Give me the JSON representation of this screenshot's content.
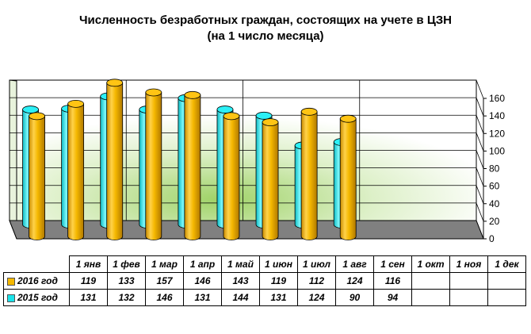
{
  "title": "Численность безработных граждан, состоящих на учете в ЦЗН",
  "subtitle": "(на 1 число месяца)",
  "colors": {
    "s2016": "#f5b800",
    "s2015": "#19e3ea",
    "floor": "#808080"
  },
  "chart_data": {
    "type": "bar",
    "title": "Численность безработных граждан, состоящих на учете в ЦЗН",
    "subtitle": "(на 1 число месяца)",
    "categories": [
      "1 янв",
      "1 фев",
      "1 мар",
      "1 апр",
      "1 май",
      "1 июн",
      "1 июл",
      "1 авг",
      "1 сен",
      "1 окт",
      "1 ноя",
      "1 дек"
    ],
    "series": [
      {
        "name": "2016 год",
        "values": [
          119,
          133,
          157,
          146,
          143,
          119,
          112,
          124,
          116,
          null,
          null,
          null
        ]
      },
      {
        "name": "2015 год",
        "values": [
          131,
          132,
          146,
          131,
          144,
          131,
          124,
          90,
          94,
          null,
          null,
          null
        ]
      }
    ],
    "yticks": [
      0,
      20,
      40,
      60,
      80,
      100,
      120,
      140,
      160
    ],
    "ylim": [
      0,
      160
    ],
    "grid": true,
    "legend": "data-table"
  }
}
